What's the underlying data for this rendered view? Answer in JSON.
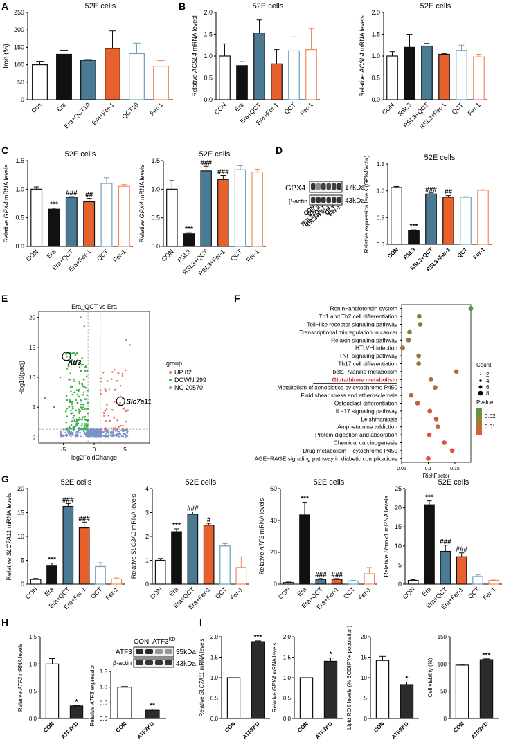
{
  "panel_letters": [
    "A",
    "B",
    "C",
    "D",
    "E",
    "F",
    "G",
    "H",
    "I"
  ],
  "colors": {
    "black": "#111111",
    "teal": "#4a7a94",
    "orange": "#e8602c",
    "lightblue": "#6a9fbf",
    "lightorange": "#f08a5d",
    "white": "#ffffff",
    "dark": "#2b2b2b"
  },
  "chart_data": [
    {
      "id": "A",
      "type": "bar",
      "title": "52E cells",
      "ylabel": "Iron (%)",
      "ylim": [
        0,
        250
      ],
      "yticks": [
        0,
        50,
        100,
        150,
        200,
        250
      ],
      "categories": [
        "Con",
        "Era",
        "Era+QCT10",
        "Era+Fer-1",
        "QCT10",
        "Fer-1"
      ],
      "values": [
        100,
        130,
        113,
        147,
        132,
        96
      ],
      "errors": [
        10,
        12,
        2,
        50,
        30,
        16
      ],
      "annotations": [
        "",
        "",
        "",
        "",
        "",
        ""
      ]
    },
    {
      "id": "B1",
      "type": "bar",
      "title": "52E cells",
      "ylabel": "Relative ACSL4 mRNA levesl",
      "ylim": [
        0,
        2.0
      ],
      "yticks": [
        0.0,
        0.5,
        1.0,
        1.5,
        2.0
      ],
      "categories": [
        "CON",
        "Era",
        "Era+QCT",
        "Era+Fer-1",
        "QCT",
        "Fer-1"
      ],
      "values": [
        1.0,
        0.78,
        1.53,
        0.82,
        1.12,
        1.15
      ],
      "errors": [
        0.28,
        0.09,
        0.3,
        0.33,
        0.32,
        0.48
      ],
      "annotations": [
        "",
        "",
        "",
        "",
        "",
        ""
      ]
    },
    {
      "id": "B2",
      "type": "bar",
      "title": "52E cells",
      "ylabel": "Relative ACSL4 mRNA levels",
      "ylim": [
        0,
        2.0
      ],
      "yticks": [
        0.0,
        0.5,
        1.0,
        1.5,
        2.0
      ],
      "categories": [
        "CON",
        "RSL3",
        "RSL3+QCT",
        "RSL3+Fer-1",
        "QCT",
        "Fer-1"
      ],
      "values": [
        1.0,
        1.2,
        1.23,
        1.04,
        1.13,
        0.98
      ],
      "errors": [
        0.1,
        0.3,
        0.06,
        0.02,
        0.12,
        0.06
      ],
      "annotations": [
        "",
        "",
        "",
        "",
        "",
        ""
      ]
    },
    {
      "id": "C1",
      "type": "bar",
      "title": "52E cells",
      "ylabel": "Relative GPX4 mRNA levels",
      "ylim": [
        0,
        1.5
      ],
      "yticks": [
        0.0,
        0.5,
        1.0,
        1.5
      ],
      "categories": [
        "CON",
        "Era",
        "Era+QCT",
        "Era+Fer-1",
        "QCT",
        "Fer-1"
      ],
      "values": [
        1.0,
        0.65,
        0.86,
        0.78,
        1.1,
        1.05
      ],
      "errors": [
        0.04,
        0.02,
        0.01,
        0.06,
        0.1,
        0.03
      ],
      "annotations": [
        "",
        "***",
        "###",
        "##",
        "",
        ""
      ]
    },
    {
      "id": "C2",
      "type": "bar",
      "title": "52E cells",
      "ylabel": "Relative GPX4 mRNA levels",
      "ylim": [
        0,
        1.5
      ],
      "yticks": [
        0.0,
        0.5,
        1.0,
        1.5
      ],
      "categories": [
        "CON",
        "RSL3",
        "RSL3+QCT",
        "RSL3+Fer-1",
        "QCT",
        "Fer-1"
      ],
      "values": [
        1.0,
        0.22,
        1.32,
        1.17,
        1.34,
        1.3
      ],
      "errors": [
        0.15,
        0.02,
        0.08,
        0.07,
        0.07,
        0.05
      ],
      "annotations": [
        "",
        "***",
        "###",
        "###",
        "",
        ""
      ]
    },
    {
      "id": "D",
      "type": "bar",
      "title": "52E cells",
      "ylabel": "Relative expression levels (GPX4/actin)",
      "ylim": [
        0,
        1.5
      ],
      "yticks": [
        0.0,
        0.5,
        1.0,
        1.5
      ],
      "categories": [
        "CON",
        "RSL3",
        "RSL3+QCT",
        "RSL3+Fer-1",
        "QCT",
        "Fer-1"
      ],
      "values": [
        1.06,
        0.26,
        0.94,
        0.88,
        0.88,
        1.01
      ],
      "errors": [
        0.02,
        0.01,
        0.02,
        0.03,
        0.01,
        0.01
      ],
      "annotations": [
        "",
        "***",
        "###",
        "##",
        "",
        ""
      ]
    },
    {
      "id": "E",
      "type": "scatter",
      "title": "Era_QCT vs Era",
      "xlabel": "log2FoldChange",
      "ylabel": "-log10(padj)",
      "xlim": [
        -9,
        9
      ],
      "ylim": [
        -1,
        21
      ],
      "xticks": [
        -5,
        0,
        5
      ],
      "yticks": [
        0,
        5,
        10,
        15,
        20
      ],
      "legend_title": "group",
      "legend": [
        "UP 82",
        "DOWN 299",
        "NO 20570"
      ],
      "highlight": [
        "Atf3",
        "Slc7a11"
      ]
    },
    {
      "id": "F",
      "type": "scatter",
      "xlabel": "RichFactor",
      "xlim": [
        0.05,
        0.18
      ],
      "xticks": [
        0.05,
        0.1,
        0.15
      ],
      "terms": [
        {
          "name": "Renin−angiotensin system",
          "rich": 0.18,
          "count": 6,
          "p": 0.025
        },
        {
          "name": "Th1 and Th2 cell differentiation",
          "rich": 0.083,
          "count": 6,
          "p": 0.022
        },
        {
          "name": "Toll−like receptor signaling pathway",
          "rich": 0.085,
          "count": 6,
          "p": 0.018
        },
        {
          "name": "Transcriptional misregulation in cancer",
          "rich": 0.065,
          "count": 6,
          "p": 0.016
        },
        {
          "name": "Relaxin signaling pathway",
          "rich": 0.063,
          "count": 6,
          "p": 0.016
        },
        {
          "name": "HTLV−I infection",
          "rich": 0.052,
          "count": 6,
          "p": 0.015
        },
        {
          "name": "TNF signaling pathway",
          "rich": 0.082,
          "count": 6,
          "p": 0.014
        },
        {
          "name": "Th17 cell differentiation",
          "rich": 0.082,
          "count": 6,
          "p": 0.014
        },
        {
          "name": "beta−Alanine metabolism",
          "rich": 0.153,
          "count": 6,
          "p": 0.013
        },
        {
          "name": "Glutathione metabolism",
          "rich": 0.105,
          "count": 6,
          "p": 0.012,
          "highlight": true
        },
        {
          "name": "Metabolism of xenobiotics by cytochrome P450",
          "rich": 0.113,
          "count": 6,
          "p": 0.011
        },
        {
          "name": "Fluid shear stress and atherosclerosis",
          "rich": 0.068,
          "count": 6,
          "p": 0.01
        },
        {
          "name": "Osteoclast differentiation",
          "rich": 0.08,
          "count": 6,
          "p": 0.009
        },
        {
          "name": "IL−17 signaling pathway",
          "rich": 0.103,
          "count": 6,
          "p": 0.008
        },
        {
          "name": "Leishmaniasis",
          "rich": 0.115,
          "count": 6,
          "p": 0.007
        },
        {
          "name": "Amphetamine addiction",
          "rich": 0.118,
          "count": 6,
          "p": 0.006
        },
        {
          "name": "Protein digestion and absorption",
          "rich": 0.102,
          "count": 6,
          "p": 0.005
        },
        {
          "name": "Chemical carcinogenesis",
          "rich": 0.13,
          "count": 6,
          "p": 0.004
        },
        {
          "name": "Drug metabolism − cytochrome P450",
          "rich": 0.145,
          "count": 6,
          "p": 0.003
        },
        {
          "name": "AGE−RAGE signaling pathway in diabetic complications",
          "rich": 0.1,
          "count": 6,
          "p": 0.002
        }
      ],
      "legend": {
        "count_title": "Count",
        "count_values": [
          "2",
          "4",
          "6",
          "8"
        ],
        "p_title": "Pvalue",
        "p_ticks": [
          "0.02",
          "0.01"
        ]
      }
    },
    {
      "id": "G1",
      "type": "bar",
      "title": "52E cells",
      "ylabel": "Relative SLC7A11 mRNA levels",
      "ylim": [
        0,
        20
      ],
      "yticks": [
        0,
        5,
        10,
        15,
        20
      ],
      "categories": [
        "CON",
        "Era",
        "Era+QCT",
        "Era+Fer-1",
        "QCT",
        "Fer-1"
      ],
      "values": [
        1.0,
        3.8,
        16.3,
        11.8,
        3.7,
        1.1
      ],
      "errors": [
        0.2,
        0.6,
        0.6,
        1.2,
        0.8,
        0.2
      ],
      "annotations": [
        "",
        "***",
        "###",
        "###",
        "",
        ""
      ]
    },
    {
      "id": "G2",
      "type": "bar",
      "title": "52E cells",
      "ylabel": "Relative SLC3A2 mRNA levels",
      "ylim": [
        0,
        4
      ],
      "yticks": [
        0,
        1,
        2,
        3,
        4
      ],
      "categories": [
        "CON",
        "Era",
        "Era+QCT",
        "Era+Fer-1",
        "QCT",
        "Fer-1"
      ],
      "values": [
        1.0,
        2.2,
        2.93,
        2.47,
        1.6,
        0.7
      ],
      "errors": [
        0.08,
        0.12,
        0.1,
        0.08,
        0.1,
        0.45
      ],
      "annotations": [
        "",
        "***",
        "###",
        "#",
        "",
        ""
      ]
    },
    {
      "id": "G3",
      "type": "bar",
      "title": "52E cells",
      "ylabel": "Relative ATF3 mRNA levels",
      "ylim": [
        0,
        60
      ],
      "yticks": [
        0,
        20,
        40,
        60
      ],
      "categories": [
        "CON",
        "Era",
        "Era+QCT",
        "Era+Fer-1",
        "QCT",
        "Fer-1"
      ],
      "values": [
        1.0,
        43.5,
        3.0,
        3.0,
        2.0,
        6.5
      ],
      "errors": [
        0.3,
        8.0,
        0.5,
        0.5,
        0.4,
        4.0
      ],
      "annotations": [
        "",
        "***",
        "###",
        "###",
        "",
        ""
      ]
    },
    {
      "id": "G4",
      "type": "bar",
      "title": "52E cells",
      "ylabel": "Relative Hmox1 mRNA levels",
      "ylim": [
        0,
        25
      ],
      "yticks": [
        0,
        5,
        10,
        15,
        20,
        25
      ],
      "categories": [
        "CON",
        "Era",
        "Era+QCT",
        "Era+Fer-1",
        "QCT",
        "Fer-1"
      ],
      "values": [
        1.0,
        20.8,
        8.6,
        7.2,
        2.0,
        1.0
      ],
      "errors": [
        0.2,
        1.0,
        1.6,
        1.0,
        0.4,
        0.1
      ],
      "annotations": [
        "",
        "***",
        "###",
        "###",
        "",
        ""
      ]
    },
    {
      "id": "H1",
      "type": "bar",
      "ylabel": "Relative ATF3 mRNA levels",
      "ylim": [
        0,
        1.5
      ],
      "yticks": [
        0.0,
        0.5,
        1.0,
        1.5
      ],
      "categories": [
        "CON",
        "ATF3KD"
      ],
      "values": [
        1.0,
        0.23
      ],
      "errors": [
        0.1,
        0.01
      ],
      "annotations": [
        "",
        "*"
      ]
    },
    {
      "id": "H2",
      "type": "bar",
      "ylabel": "Relative ATF3 expression",
      "ylim": [
        0,
        1.5
      ],
      "yticks": [
        0.0,
        0.5,
        1.0,
        1.5
      ],
      "categories": [
        "CON",
        "ATF3KD"
      ],
      "values": [
        1.0,
        0.26
      ],
      "errors": [
        0.02,
        0.04
      ],
      "annotations": [
        "",
        "**"
      ]
    },
    {
      "id": "I1",
      "type": "bar",
      "ylabel": "Relative SLC7A11 mRNA levels",
      "ylim": [
        0,
        2.0
      ],
      "yticks": [
        0.0,
        0.5,
        1.0,
        1.5,
        2.0
      ],
      "categories": [
        "CON",
        "ATF3KD"
      ],
      "values": [
        1.0,
        1.88
      ],
      "errors": [
        0.0,
        0.02
      ],
      "annotations": [
        "",
        "***"
      ]
    },
    {
      "id": "I2",
      "type": "bar",
      "ylabel": "Relative GPX4 mRNA levels",
      "ylim": [
        0,
        2.0
      ],
      "yticks": [
        0.0,
        0.5,
        1.0,
        1.5,
        2.0
      ],
      "categories": [
        "CON",
        "ATF3KD"
      ],
      "values": [
        1.0,
        1.4
      ],
      "errors": [
        0.0,
        0.08
      ],
      "annotations": [
        "",
        "*"
      ]
    },
    {
      "id": "I3",
      "type": "bar",
      "ylabel": "Lipid ROS levels (% BODIPY+ population)",
      "ylim": [
        0,
        20
      ],
      "yticks": [
        0,
        5,
        10,
        15,
        20
      ],
      "categories": [
        "CON",
        "ATF3KD"
      ],
      "values": [
        14.2,
        8.3
      ],
      "errors": [
        1.0,
        0.6
      ],
      "annotations": [
        "",
        "*"
      ]
    },
    {
      "id": "I4",
      "type": "bar",
      "ylabel": "Cell viability (%)",
      "ylim": [
        0,
        150
      ],
      "yticks": [
        0,
        50,
        100,
        150
      ],
      "categories": [
        "CON",
        "ATF3KD"
      ],
      "values": [
        98,
        108
      ],
      "errors": [
        1.5,
        1.5
      ],
      "annotations": [
        "",
        "***"
      ]
    }
  ],
  "blots": {
    "D": {
      "rows": [
        "GPX4",
        "β-actin"
      ],
      "sizes": [
        "17kDa",
        "43kDa"
      ],
      "lanes": [
        "CON",
        "RSL3",
        "RSL3+QCT",
        "RSL3+Fer-1",
        "QCT",
        "Fer-1"
      ]
    },
    "H": {
      "rows": [
        "ATF3",
        "β-actin"
      ],
      "sizes": [
        "35kDa",
        "43kDa"
      ],
      "lanes": [
        "CON",
        "ATF3KD"
      ]
    }
  }
}
